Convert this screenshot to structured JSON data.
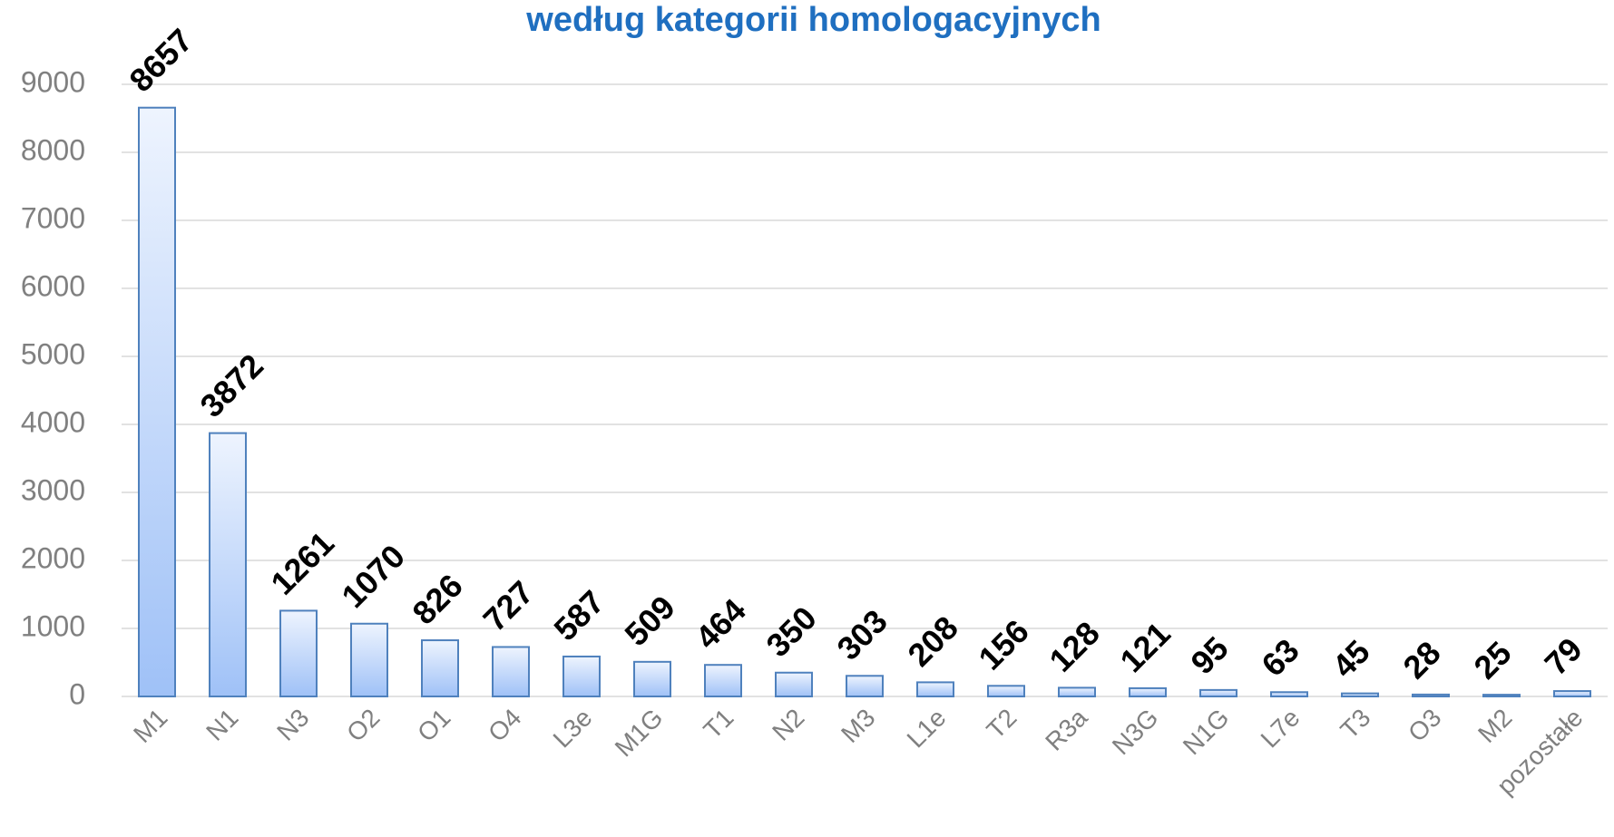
{
  "chart_data": {
    "type": "bar",
    "title": "według kategorii homologacyjnych",
    "categories": [
      "M1",
      "N1",
      "N3",
      "O2",
      "O1",
      "O4",
      "L3e",
      "M1G",
      "T1",
      "N2",
      "M3",
      "L1e",
      "T2",
      "R3a",
      "N3G",
      "N1G",
      "L7e",
      "T3",
      "O3",
      "M2",
      "pozostałe"
    ],
    "values": [
      8657,
      3872,
      1261,
      1070,
      826,
      727,
      587,
      509,
      464,
      350,
      303,
      208,
      156,
      128,
      121,
      95,
      63,
      45,
      28,
      25,
      79
    ],
    "color": "#4f81bd",
    "ylim": [
      0,
      9000
    ],
    "yticks": [
      0,
      1000,
      2000,
      3000,
      4000,
      5000,
      6000,
      7000,
      8000,
      9000
    ],
    "grid": true
  }
}
